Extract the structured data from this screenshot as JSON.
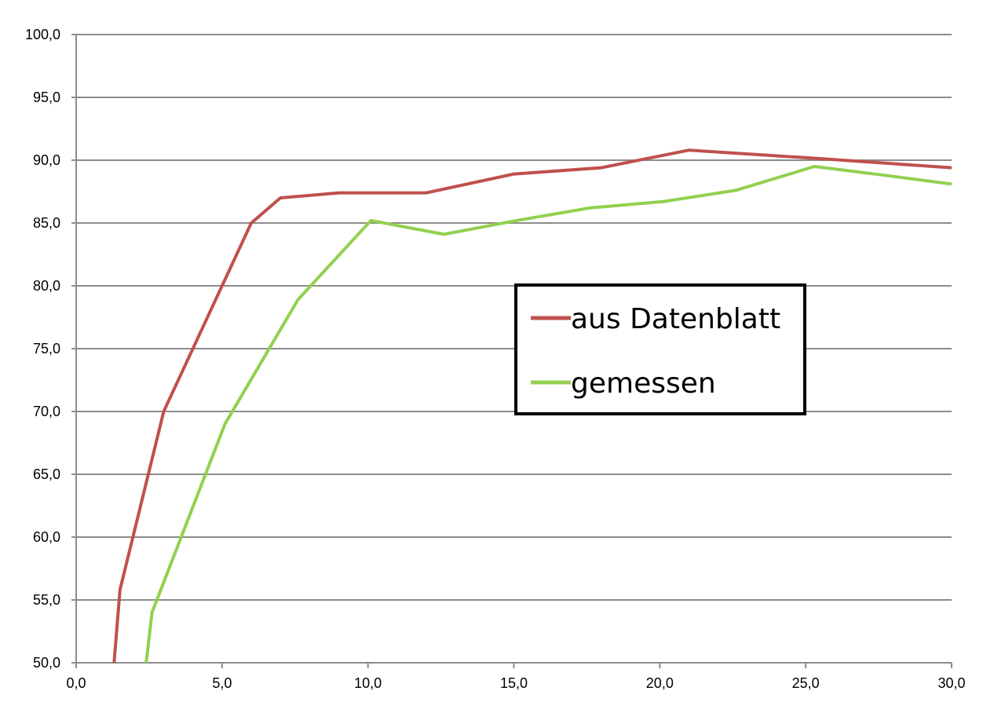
{
  "chart_data": {
    "type": "line",
    "title": "",
    "xlabel": "",
    "ylabel": "",
    "xlim": [
      0,
      30
    ],
    "ylim": [
      50,
      100
    ],
    "x_ticks": [
      "0,0",
      "5,0",
      "10,0",
      "15,0",
      "20,0",
      "25,0",
      "30,0"
    ],
    "y_ticks": [
      "50,0",
      "55,0",
      "60,0",
      "65,0",
      "70,0",
      "75,0",
      "80,0",
      "85,0",
      "90,0",
      "95,0",
      "100,0"
    ],
    "grid": "horizontal",
    "legend_position": "center-right",
    "series": [
      {
        "name": "aus Datenblatt",
        "color": "#c0504d",
        "x": [
          1.3,
          1.5,
          3.0,
          6.0,
          7.0,
          9.0,
          12.0,
          15.0,
          18.0,
          21.0,
          25.0,
          30.0
        ],
        "y": [
          50.0,
          55.8,
          70.0,
          85.0,
          87.0,
          87.4,
          87.4,
          88.9,
          89.4,
          90.8,
          90.2,
          89.4
        ]
      },
      {
        "name": "gemessen",
        "color": "#92d050",
        "x": [
          2.4,
          2.6,
          5.1,
          7.6,
          10.1,
          12.6,
          15.1,
          17.6,
          20.1,
          22.6,
          25.3,
          27.7,
          30.0
        ],
        "y": [
          50.0,
          54.0,
          69.0,
          78.9,
          85.2,
          84.1,
          85.2,
          86.2,
          86.7,
          87.6,
          89.5,
          88.8,
          88.1
        ]
      }
    ]
  }
}
